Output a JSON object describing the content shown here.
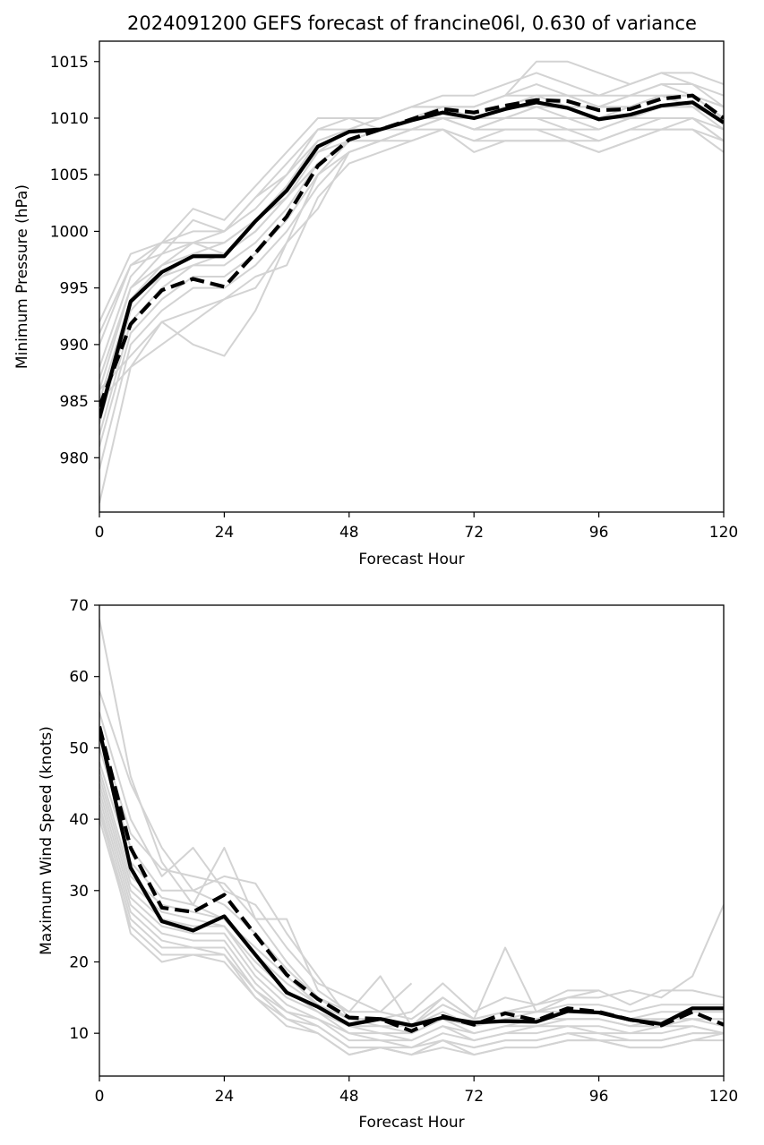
{
  "chart_data": [
    {
      "type": "line",
      "title": "2024091200 GEFS forecast of francine06l, 0.630 of variance",
      "xlabel": "Forecast Hour",
      "ylabel": "Minimum Pressure (hPa)",
      "xlim": [
        0,
        120
      ],
      "ylim": [
        975.2,
        1016.8
      ],
      "xticks": [
        0,
        24,
        48,
        72,
        96,
        120
      ],
      "yticks": [
        980,
        985,
        990,
        995,
        1000,
        1005,
        1010,
        1015
      ],
      "grid": false,
      "colors": {
        "members": "#d3d3d3",
        "main": "#000000"
      },
      "x": [
        0,
        6,
        12,
        18,
        24,
        30,
        36,
        42,
        48,
        54,
        60,
        66,
        72,
        78,
        84,
        90,
        96,
        102,
        108,
        114,
        120
      ],
      "members": [
        [
          992,
          998,
          999,
          1002,
          1001,
          1004,
          1007,
          1010,
          1010,
          1009,
          1010,
          1011,
          1011,
          1012,
          1015,
          1015,
          1014,
          1013,
          1014,
          1014,
          1013
        ],
        [
          990,
          997,
          998,
          1001,
          1000,
          1003,
          1006,
          1009,
          1010,
          1010,
          1011,
          1012,
          1012,
          1013,
          1014,
          1013,
          1012,
          1013,
          1014,
          1013,
          1011
        ],
        [
          988,
          996,
          999,
          1000,
          1000,
          1003,
          1005,
          1009,
          1009,
          1010,
          1011,
          1011,
          1011,
          1012,
          1012,
          1012,
          1011,
          1012,
          1013,
          1013,
          1012
        ],
        [
          987,
          995,
          998,
          999,
          1000,
          1002,
          1005,
          1008,
          1009,
          1010,
          1011,
          1011,
          1010,
          1011,
          1012,
          1011,
          1011,
          1011,
          1012,
          1012,
          1011
        ],
        [
          986,
          995,
          997,
          999,
          999,
          1001,
          1004,
          1008,
          1009,
          1009,
          1010,
          1011,
          1010,
          1011,
          1011,
          1011,
          1010,
          1011,
          1012,
          1012,
          1010
        ],
        [
          985,
          994,
          997,
          998,
          999,
          1001,
          1004,
          1007,
          1009,
          1009,
          1010,
          1010,
          1010,
          1010,
          1011,
          1010,
          1010,
          1010,
          1011,
          1011,
          1010
        ],
        [
          984,
          994,
          996,
          998,
          998,
          1000,
          1003,
          1007,
          1008,
          1009,
          1010,
          1010,
          1009,
          1010,
          1010,
          1010,
          1009,
          1010,
          1011,
          1011,
          1009
        ],
        [
          983,
          993,
          996,
          997,
          998,
          1000,
          1003,
          1006,
          1008,
          1009,
          1009,
          1010,
          1009,
          1010,
          1010,
          1009,
          1009,
          1010,
          1010,
          1010,
          1009
        ],
        [
          982,
          992,
          995,
          997,
          997,
          999,
          1002,
          1006,
          1008,
          1008,
          1009,
          1010,
          1009,
          1009,
          1009,
          1009,
          1008,
          1009,
          1010,
          1010,
          1008
        ],
        [
          981,
          991,
          994,
          996,
          996,
          998,
          1001,
          1005,
          1007,
          1008,
          1009,
          1009,
          1008,
          1009,
          1009,
          1008,
          1008,
          1009,
          1009,
          1010,
          1008
        ],
        [
          979,
          990,
          993,
          995,
          995,
          997,
          1000,
          1004,
          1007,
          1008,
          1008,
          1009,
          1008,
          1008,
          1008,
          1008,
          1007,
          1008,
          1009,
          1009,
          1007
        ],
        [
          976,
          988,
          992,
          993,
          994,
          996,
          997,
          1003,
          1006,
          1007,
          1008,
          1009,
          1007,
          1008,
          1008,
          1008,
          1007,
          1008,
          1009,
          1009,
          1008
        ],
        [
          985,
          988,
          990,
          992,
          994,
          995,
          999,
          1002,
          1007,
          1008,
          1009,
          1010,
          1010,
          1011,
          1012,
          1012,
          1011,
          1012,
          1012,
          1012,
          1010
        ],
        [
          986,
          989,
          992,
          990,
          989,
          993,
          999,
          1005,
          1008,
          1009,
          1010,
          1011,
          1011,
          1012,
          1013,
          1012,
          1012,
          1012,
          1013,
          1012,
          1011
        ],
        [
          991,
          997,
          999,
          999,
          998,
          1001,
          1003,
          1006,
          1008,
          1008,
          1009,
          1010,
          1010,
          1010,
          1011,
          1011,
          1011,
          1011,
          1012,
          1011,
          1010
        ]
      ],
      "series": [
        {
          "name": "",
          "style": "solid",
          "values": [
            983.5,
            993.8,
            996.4,
            997.8,
            997.8,
            1000.9,
            1003.6,
            1007.5,
            1008.8,
            1009.0,
            1009.8,
            1010.5,
            1010.0,
            1010.8,
            1011.4,
            1010.9,
            1009.9,
            1010.3,
            1011.1,
            1011.4,
            1009.6
          ]
        },
        {
          "name": "",
          "style": "dashed",
          "values": [
            984.5,
            991.8,
            994.8,
            995.8,
            995.1,
            998.1,
            1001.3,
            1005.8,
            1008.1,
            1009.0,
            1009.9,
            1010.8,
            1010.5,
            1011.1,
            1011.6,
            1011.5,
            1010.7,
            1010.8,
            1011.7,
            1012.0,
            1010.0
          ]
        }
      ]
    },
    {
      "type": "line",
      "title": "",
      "xlabel": "Forecast Hour",
      "ylabel": "Maximum Wind Speed (knots)",
      "xlim": [
        0,
        120
      ],
      "ylim": [
        4,
        70
      ],
      "xticks": [
        0,
        24,
        48,
        72,
        96,
        120
      ],
      "yticks": [
        10,
        20,
        30,
        40,
        50,
        60,
        70
      ],
      "grid": false,
      "colors": {
        "members": "#d3d3d3",
        "main": "#000000"
      },
      "x": [
        0,
        6,
        12,
        18,
        24,
        30,
        36,
        42,
        48,
        54,
        60,
        66,
        72,
        78,
        84,
        90,
        96,
        102,
        108,
        114,
        120
      ],
      "members": [
        [
          68,
          46,
          34,
          28,
          36,
          26,
          26,
          16,
          13,
          18,
          11,
          15,
          12,
          22,
          13,
          15,
          16,
          null,
          null,
          null,
          null
        ],
        [
          58,
          45,
          36,
          30,
          32,
          31,
          24,
          18,
          12,
          12,
          13,
          17,
          13,
          15,
          14,
          16,
          16,
          14,
          16,
          16,
          15
        ],
        [
          55,
          40,
          32,
          36,
          30,
          28,
          22,
          17,
          15,
          13,
          17,
          null,
          null,
          null,
          null,
          null,
          null,
          null,
          null,
          null,
          null
        ],
        [
          52,
          38,
          33,
          32,
          31,
          26,
          20,
          15,
          13,
          13,
          12,
          15,
          12,
          13,
          14,
          15,
          15,
          16,
          15,
          18,
          28
        ],
        [
          50,
          36,
          30,
          30,
          28,
          24,
          19,
          15,
          12,
          12,
          11,
          14,
          12,
          13,
          13,
          14,
          14,
          13,
          14,
          14,
          14
        ],
        [
          48,
          34,
          29,
          28,
          26,
          22,
          18,
          14,
          12,
          11,
          11,
          13,
          11,
          12,
          13,
          13,
          13,
          12,
          13,
          13,
          13
        ],
        [
          47,
          32,
          28,
          27,
          26,
          21,
          17,
          14,
          11,
          11,
          10,
          12,
          11,
          12,
          12,
          13,
          13,
          12,
          12,
          12,
          12
        ],
        [
          46,
          31,
          27,
          26,
          25,
          20,
          16,
          13,
          11,
          10,
          10,
          12,
          10,
          11,
          12,
          12,
          12,
          11,
          12,
          12,
          11
        ],
        [
          45,
          30,
          26,
          25,
          25,
          19,
          15,
          13,
          10,
          10,
          9,
          11,
          10,
          11,
          11,
          12,
          12,
          11,
          11,
          12,
          11
        ],
        [
          44,
          29,
          25,
          24,
          24,
          18,
          14,
          12,
          10,
          9,
          9,
          11,
          9,
          10,
          11,
          11,
          11,
          10,
          11,
          11,
          10
        ],
        [
          43,
          28,
          24,
          23,
          23,
          17,
          13,
          12,
          9,
          9,
          8,
          10,
          9,
          10,
          10,
          11,
          10,
          10,
          10,
          11,
          10
        ],
        [
          42,
          27,
          23,
          22,
          22,
          16,
          13,
          11,
          8,
          8,
          8,
          9,
          8,
          9,
          9,
          10,
          10,
          9,
          9,
          10,
          10
        ],
        [
          41,
          26,
          22,
          22,
          21,
          16,
          12,
          11,
          8,
          8,
          7,
          9,
          8,
          9,
          9,
          10,
          9,
          9,
          9,
          10,
          10
        ],
        [
          40,
          25,
          21,
          21,
          21,
          15,
          12,
          10,
          7,
          8,
          7,
          9,
          7,
          8,
          8,
          9,
          9,
          8,
          8,
          9,
          10
        ],
        [
          42,
          24,
          20,
          21,
          20,
          15,
          11,
          10,
          7,
          8,
          7,
          8,
          7,
          8,
          8,
          9,
          9,
          8,
          8,
          9,
          9
        ]
      ],
      "series": [
        {
          "name": "",
          "style": "solid",
          "values": [
            52.5,
            33.2,
            25.7,
            24.4,
            26.4,
            21.0,
            15.7,
            13.7,
            11.2,
            12.0,
            11.1,
            12.2,
            11.5,
            11.7,
            11.6,
            13.1,
            12.9,
            11.9,
            11.3,
            13.5,
            13.5
          ]
        },
        {
          "name": "",
          "style": "dashed",
          "values": [
            53.0,
            36.0,
            27.6,
            27.0,
            29.4,
            23.8,
            18.2,
            14.8,
            12.2,
            12.0,
            10.3,
            12.4,
            11.2,
            12.8,
            11.8,
            13.5,
            13.0,
            11.9,
            11.1,
            13.0,
            11.2
          ]
        }
      ]
    }
  ]
}
